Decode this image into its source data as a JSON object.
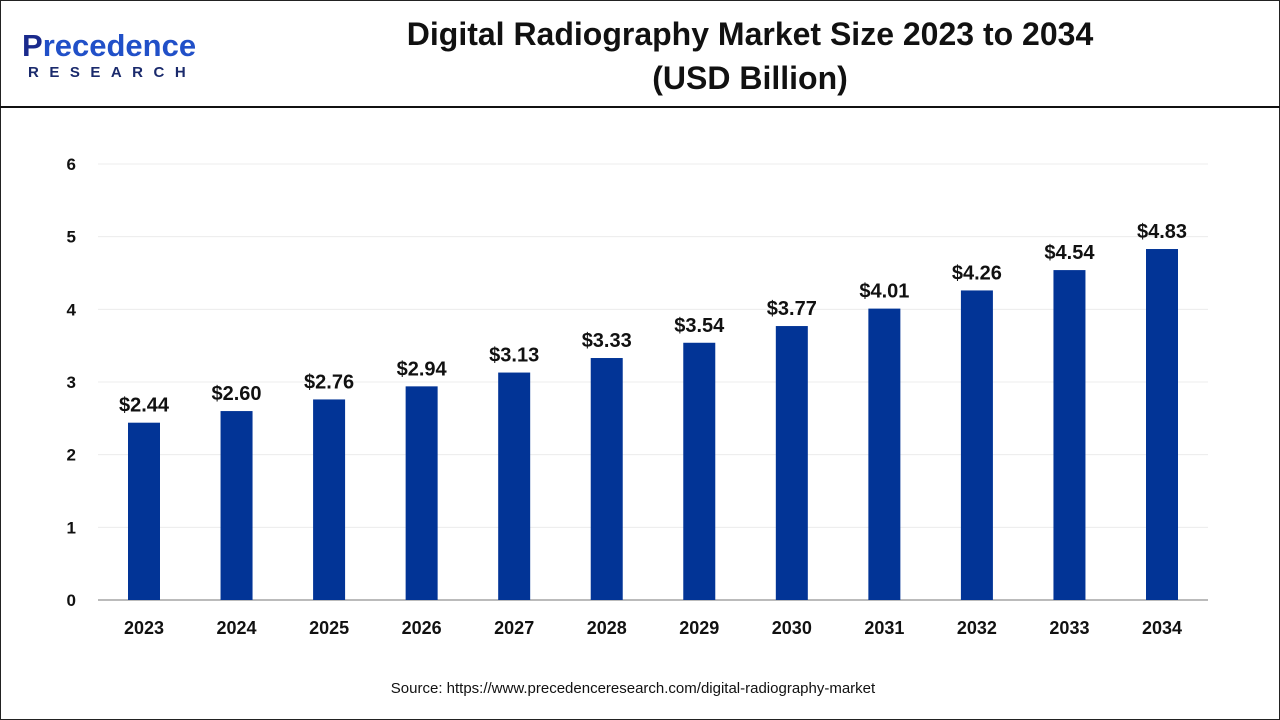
{
  "logo": {
    "brand_initial": "P",
    "brand_rest": "recedence",
    "sub": "RESEARCH"
  },
  "title_line1": "Digital Radiography Market Size 2023 to 2034",
  "title_line2": "(USD Billion)",
  "source": "Source: https://www.precedenceresearch.com/digital-radiography-market",
  "chart_data": {
    "type": "bar",
    "title": "Digital Radiography Market Size 2023 to 2034 (USD Billion)",
    "categories": [
      "2023",
      "2024",
      "2025",
      "2026",
      "2027",
      "2028",
      "2029",
      "2030",
      "2031",
      "2032",
      "2033",
      "2034"
    ],
    "values": [
      2.44,
      2.6,
      2.76,
      2.94,
      3.13,
      3.33,
      3.54,
      3.77,
      4.01,
      4.26,
      4.54,
      4.83
    ],
    "data_labels": [
      "$2.44",
      "$2.60",
      "$2.76",
      "$2.94",
      "$3.13",
      "$3.33",
      "$3.54",
      "$3.77",
      "$4.01",
      "$4.26",
      "$4.54",
      "$4.83"
    ],
    "ylim": [
      0,
      6
    ],
    "yticks": [
      "0",
      "1",
      "2",
      "3",
      "4",
      "5",
      "6"
    ],
    "grid": true,
    "bar_color": "#023496",
    "xlabel": "",
    "ylabel": ""
  }
}
